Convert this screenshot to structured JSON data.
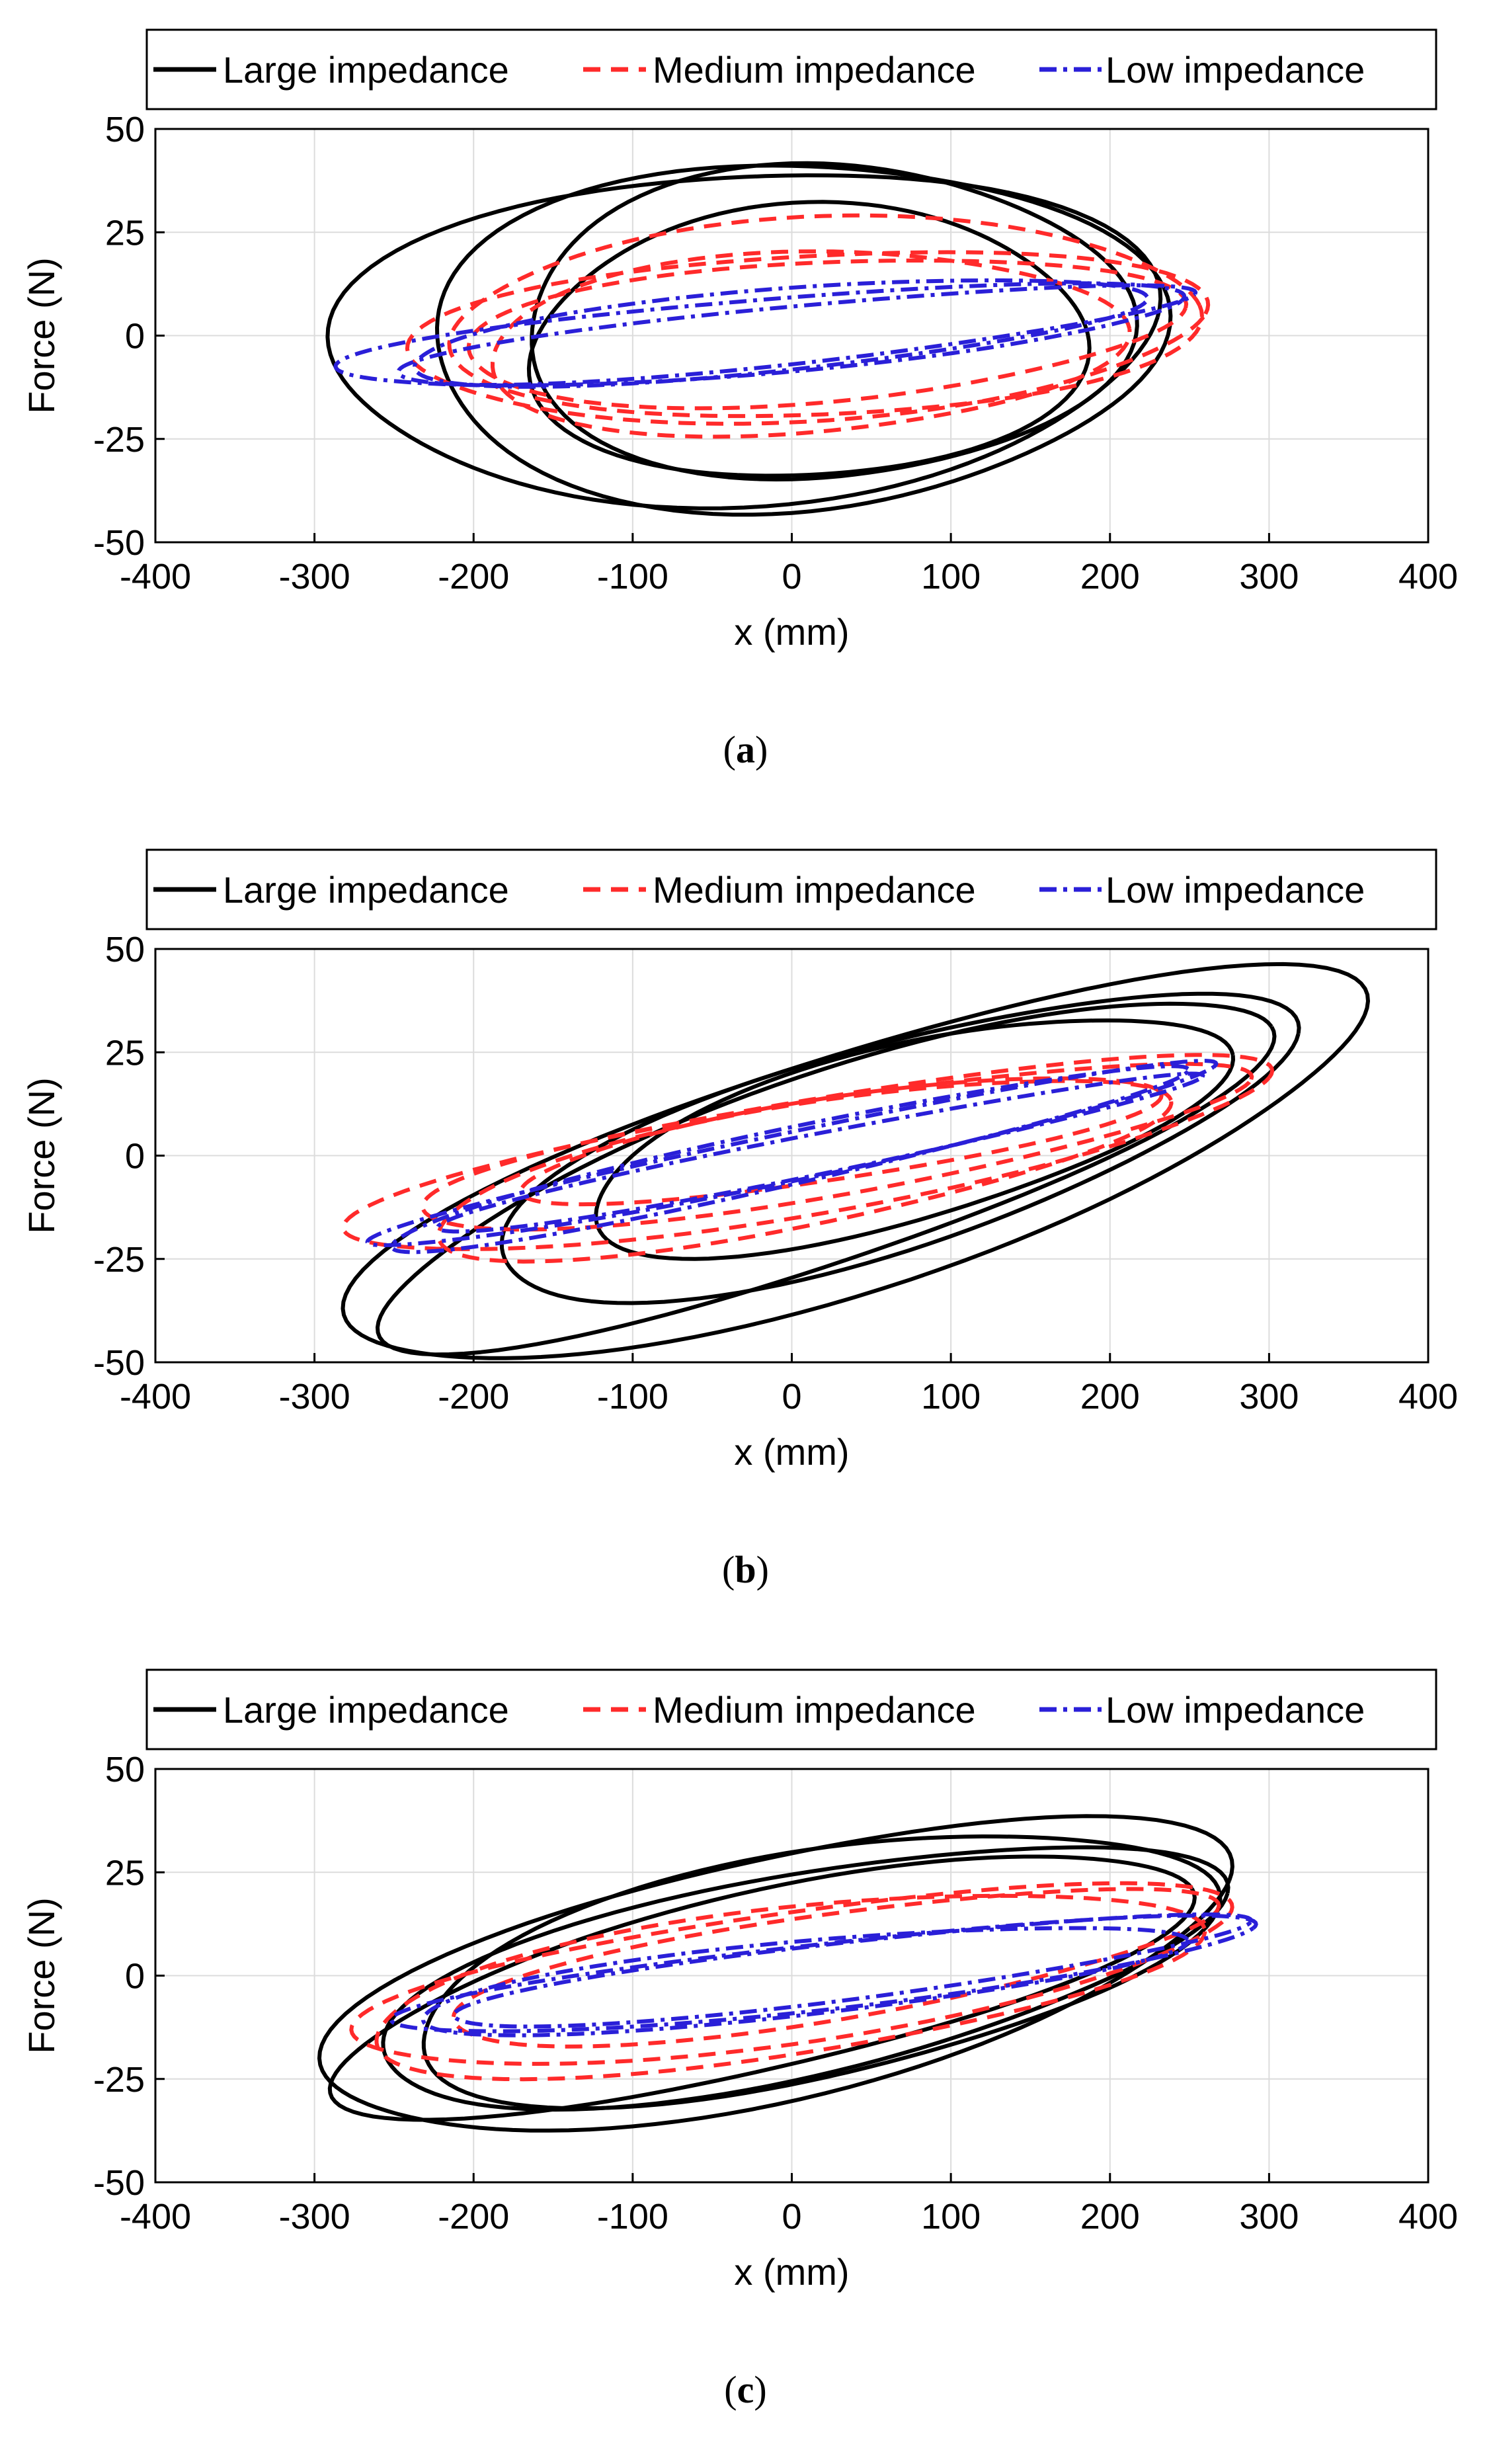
{
  "legend": {
    "large": "Large impedance",
    "medium": "Medium impedance",
    "low": "Low impedance"
  },
  "colors": {
    "large": "#000000",
    "medium": "#ff2a2a",
    "low": "#2a1fd8",
    "grid": "#dcdcdc"
  },
  "chart_data": [
    {
      "type": "line",
      "panel": "a",
      "caption": "a",
      "xlabel": "x (mm)",
      "ylabel": "Force (N)",
      "xlim": [
        -400,
        400
      ],
      "ylim": [
        -50,
        50
      ],
      "xticks": [
        "-400",
        "-300",
        "-200",
        "-100",
        "0",
        "100",
        "200",
        "300",
        "400"
      ],
      "yticks": [
        "50",
        "25",
        "0",
        "-25",
        "-50"
      ],
      "grid": true,
      "legend_position": "top",
      "series": [
        {
          "name": "Large impedance",
          "loops": [
            {
              "cx": -30,
              "cy": 0,
              "ax": 260,
              "ay": 40,
              "tilt": 5
            },
            {
              "cx": 0,
              "cy": 0,
              "ax": 230,
              "ay": 42,
              "tilt": 3
            },
            {
              "cx": 20,
              "cy": 3,
              "ax": 190,
              "ay": 38,
              "tilt": 2
            },
            {
              "cx": 10,
              "cy": -2,
              "ax": 175,
              "ay": 33,
              "tilt": 4
            }
          ]
        },
        {
          "name": "Medium impedance",
          "loops": [
            {
              "cx": 10,
              "cy": 0,
              "ax": 250,
              "ay": 20,
              "tilt": 6
            },
            {
              "cx": 15,
              "cy": 1,
              "ax": 225,
              "ay": 17,
              "tilt": 7
            },
            {
              "cx": 5,
              "cy": -2,
              "ax": 200,
              "ay": 22,
              "tilt": 5
            },
            {
              "cx": 20,
              "cy": 4,
              "ax": 235,
              "ay": 24,
              "tilt": 4
            }
          ]
        },
        {
          "name": "Low impedance",
          "loops": [
            {
              "cx": -20,
              "cy": 0,
              "ax": 265,
              "ay": 9,
              "tilt": 9
            },
            {
              "cx": -5,
              "cy": 0,
              "ax": 250,
              "ay": 7,
              "tilt": 11
            },
            {
              "cx": -15,
              "cy": 1,
              "ax": 230,
              "ay": 10,
              "tilt": 10
            }
          ]
        }
      ]
    },
    {
      "type": "line",
      "panel": "b",
      "caption": "b",
      "xlabel": "x (mm)",
      "ylabel": "Force (N)",
      "xlim": [
        -400,
        400
      ],
      "ylim": [
        -50,
        50
      ],
      "xticks": [
        "-400",
        "-300",
        "-200",
        "-100",
        "0",
        "100",
        "200",
        "300",
        "400"
      ],
      "yticks": [
        "50",
        "25",
        "0",
        "-25",
        "-50"
      ],
      "grid": true,
      "legend_position": "top",
      "series": [
        {
          "name": "Large impedance",
          "loops": [
            {
              "cx": 40,
              "cy": -3,
              "ax": 320,
              "ay": 30,
              "tilt": 30
            },
            {
              "cx": 60,
              "cy": 2,
              "ax": 250,
              "ay": 26,
              "tilt": 28
            },
            {
              "cx": 70,
              "cy": 5,
              "ax": 200,
              "ay": 22,
              "tilt": 25
            },
            {
              "cx": 20,
              "cy": -4,
              "ax": 280,
              "ay": 24,
              "tilt": 32
            }
          ]
        },
        {
          "name": "Medium impedance",
          "loops": [
            {
              "cx": 10,
              "cy": 0,
              "ax": 290,
              "ay": 14,
              "tilt": 18
            },
            {
              "cx": 20,
              "cy": 2,
              "ax": 260,
              "ay": 12,
              "tilt": 17
            },
            {
              "cx": 0,
              "cy": -3,
              "ax": 230,
              "ay": 15,
              "tilt": 19
            },
            {
              "cx": 30,
              "cy": 4,
              "ax": 200,
              "ay": 10,
              "tilt": 16
            }
          ]
        },
        {
          "name": "Low impedance",
          "loops": [
            {
              "cx": 0,
              "cy": 0,
              "ax": 265,
              "ay": 6,
              "tilt": 22
            },
            {
              "cx": 10,
              "cy": 0,
              "ax": 240,
              "ay": 5,
              "tilt": 21
            },
            {
              "cx": -10,
              "cy": -1,
              "ax": 250,
              "ay": 7,
              "tilt": 23
            }
          ]
        }
      ]
    },
    {
      "type": "line",
      "panel": "c",
      "caption": "c",
      "xlabel": "x (mm)",
      "ylabel": "Force (N)",
      "xlim": [
        -400,
        400
      ],
      "ylim": [
        -50,
        50
      ],
      "xticks": [
        "-400",
        "-300",
        "-200",
        "-100",
        "0",
        "100",
        "200",
        "300",
        "400"
      ],
      "yticks": [
        "50",
        "25",
        "0",
        "-25",
        "-50"
      ],
      "grid": true,
      "legend_position": "top",
      "series": [
        {
          "name": "Large impedance",
          "loops": [
            {
              "cx": -10,
              "cy": 0,
              "ax": 285,
              "ay": 30,
              "tilt": 22
            },
            {
              "cx": 0,
              "cy": 0,
              "ax": 265,
              "ay": 25,
              "tilt": 20
            },
            {
              "cx": 10,
              "cy": 2,
              "ax": 250,
              "ay": 28,
              "tilt": 19
            },
            {
              "cx": -20,
              "cy": -2,
              "ax": 270,
              "ay": 22,
              "tilt": 23
            }
          ]
        },
        {
          "name": "Medium impedance",
          "loops": [
            {
              "cx": 0,
              "cy": 0,
              "ax": 275,
              "ay": 16,
              "tilt": 15
            },
            {
              "cx": 20,
              "cy": 2,
              "ax": 240,
              "ay": 13,
              "tilt": 16
            },
            {
              "cx": -10,
              "cy": -2,
              "ax": 260,
              "ay": 18,
              "tilt": 14
            }
          ]
        },
        {
          "name": "Low impedance",
          "loops": [
            {
              "cx": 20,
              "cy": 0,
              "ax": 270,
              "ay": 8,
              "tilt": 12
            },
            {
              "cx": 30,
              "cy": 1,
              "ax": 250,
              "ay": 7,
              "tilt": 13
            },
            {
              "cx": 0,
              "cy": -1,
              "ax": 240,
              "ay": 9,
              "tilt": 11
            }
          ]
        }
      ]
    }
  ]
}
